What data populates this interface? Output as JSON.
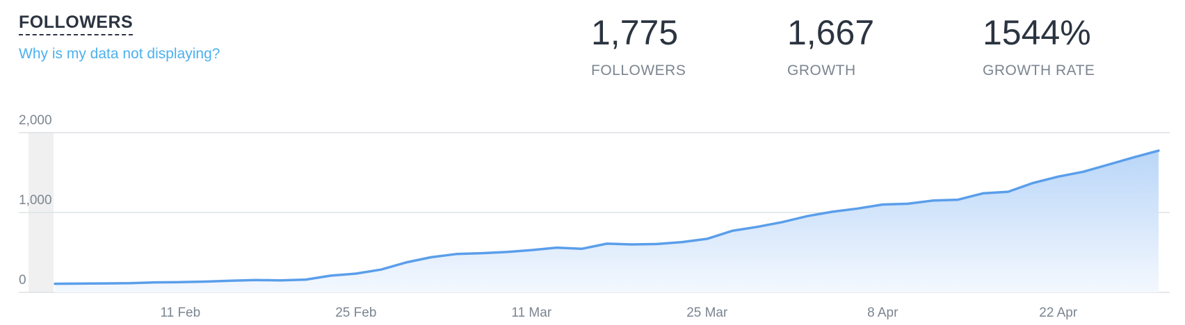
{
  "header": {
    "title": "FOLLOWERS",
    "help_link": "Why is my data not displaying?"
  },
  "stats": [
    {
      "value": "1,775",
      "label": "FOLLOWERS"
    },
    {
      "value": "1,667",
      "label": "GROWTH"
    },
    {
      "value": "1544%",
      "label": "GROWTH RATE"
    }
  ],
  "chart_data": {
    "type": "area",
    "color": "#5a9eea",
    "categories": [
      null,
      null,
      null,
      null,
      null,
      "11 Feb",
      null,
      null,
      null,
      null,
      null,
      null,
      "25 Feb",
      null,
      null,
      null,
      null,
      null,
      null,
      "11 Mar",
      null,
      null,
      null,
      null,
      null,
      null,
      "25 Mar",
      null,
      null,
      null,
      null,
      null,
      null,
      "8 Apr",
      null,
      null,
      null,
      null,
      null,
      null,
      "22 Apr",
      null,
      null,
      null,
      null
    ],
    "values": [
      108,
      110,
      112,
      115,
      125,
      128,
      135,
      145,
      155,
      150,
      160,
      210,
      235,
      285,
      375,
      440,
      480,
      490,
      505,
      530,
      560,
      545,
      610,
      600,
      605,
      630,
      670,
      770,
      820,
      880,
      955,
      1010,
      1050,
      1100,
      1110,
      1150,
      1160,
      1240,
      1260,
      1370,
      1450,
      1510,
      1600,
      1690,
      1775
    ],
    "ylim": [
      0,
      2000
    ],
    "yticks": [
      {
        "value": 0,
        "label": "0"
      },
      {
        "value": 1000,
        "label": "1,000"
      },
      {
        "value": 2000,
        "label": "2,000"
      }
    ],
    "grid": true
  }
}
